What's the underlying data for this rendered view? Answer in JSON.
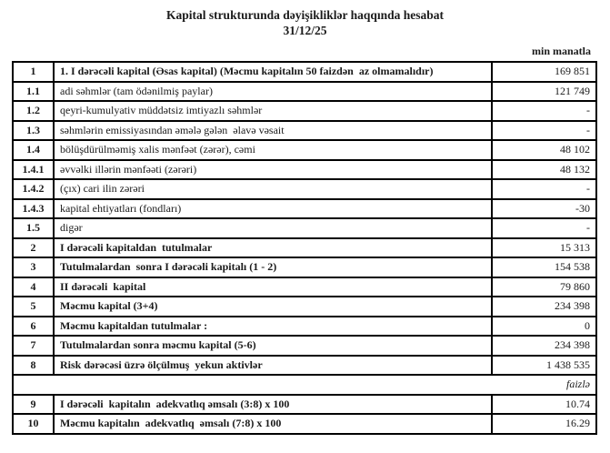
{
  "header": {
    "title": "Kapital strukturunda dəyişikliklər haqqında hesabat",
    "date": "31/12/25",
    "unit_note": "min manatla"
  },
  "table": {
    "rows": [
      {
        "num": "1",
        "label": "1. I dərəcəli kapital (Əsas kapital) (Məcmu kapitalın 50 faizdən  az olmamalıdır)",
        "value": "169 851"
      },
      {
        "num": "1.1",
        "label": "adi səhmlər (tam ödənilmiş paylar)",
        "value": "121 749"
      },
      {
        "num": "1.2",
        "label": "qeyri-kumulyativ müddətsiz imtiyazlı səhmlər",
        "value": "-"
      },
      {
        "num": "1.3",
        "label": "səhmlərin emissiyasından əmələ gələn  əlavə vəsait",
        "value": "-"
      },
      {
        "num": "1.4",
        "label": "bölüşdürülməmiş xalis mənfəət (zərər), cəmi",
        "value": "48 102"
      },
      {
        "num": "1.4.1",
        "label": "əvvəlki illərin mənfəəti (zərəri)",
        "value": "48 132"
      },
      {
        "num": "1.4.2",
        "label": "(çıx) cari ilin zərəri",
        "value": "-"
      },
      {
        "num": "1.4.3",
        "label": "kapital ehtiyatları (fondları)",
        "value": "-30"
      },
      {
        "num": "1.5",
        "label": "digər",
        "value": "-"
      },
      {
        "num": "2",
        "label": "I dərəcəli kapitaldan  tutulmalar",
        "value": "15 313"
      },
      {
        "num": "3",
        "label": "Tutulmalardan  sonra I dərəcəli kapitalı (1 - 2)",
        "value": "154 538"
      },
      {
        "num": "4",
        "label": "II dərəcəli  kapital",
        "value": "79 860"
      },
      {
        "num": "5",
        "label": "Məcmu kapital (3+4)",
        "value": "234 398"
      },
      {
        "num": "6",
        "label": "Məcmu kapitaldan tutulmalar :",
        "value": "0"
      },
      {
        "num": "7",
        "label": "Tutulmalardan sonra məcmu kapital (5-6)",
        "value": "234 398"
      },
      {
        "num": "8",
        "label": "Risk dərəcəsi üzrə ölçülmuş  yekun aktivlər",
        "value": "1 438 535"
      }
    ],
    "percent_note": "faizlə",
    "ratio_rows": [
      {
        "num": "9",
        "label": "I dərəcəli  kapitalın  adekvatlıq əmsalı (3:8) x 100",
        "value": "10.74"
      },
      {
        "num": "10",
        "label": "Məcmu kapitalın  adekvatlıq  əmsalı (7:8) x 100",
        "value": "16.29"
      }
    ]
  }
}
